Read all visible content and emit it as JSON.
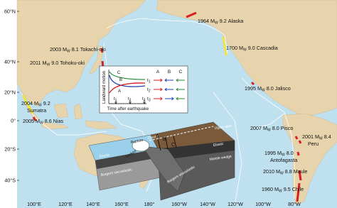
{
  "axes": {
    "latitude_labels": [
      "60°N",
      "40°N",
      "20°N",
      "0°",
      "20°S",
      "40°S"
    ],
    "longitude_labels": [
      "100°E",
      "120°E",
      "140°E",
      "160°E",
      "180°",
      "160°W",
      "140°W",
      "120°W",
      "100°W",
      "80°W"
    ]
  },
  "magnitude_symbol": "M",
  "magnitude_subscript": "W",
  "earthquakes": [
    {
      "year": "1964",
      "magnitude": "9.2",
      "name": "Alaska"
    },
    {
      "year": "2003",
      "magnitude": "8.1",
      "name": "Tokachi-oki"
    },
    {
      "year": "2011",
      "magnitude": "9.0",
      "name": "Tohoku-oki"
    },
    {
      "year": "1700",
      "magnitude": "9.0",
      "name": "Cascadia"
    },
    {
      "year": "1995",
      "magnitude": "8.0",
      "name": "Jalisco"
    },
    {
      "year": "2004",
      "magnitude": "9.2",
      "name": "Sumatra"
    },
    {
      "year": "2005",
      "magnitude": "8.6",
      "name": "Nias"
    },
    {
      "year": "2007",
      "magnitude": "8.0",
      "name": "Pisco"
    },
    {
      "year": "2001",
      "magnitude": "8.4",
      "name": "Peru"
    },
    {
      "year": "1995",
      "magnitude": "8.0",
      "name": "Antofagasta"
    },
    {
      "year": "2010",
      "magnitude": "8.8",
      "name": "Maule"
    },
    {
      "year": "1960",
      "magnitude": "9.5",
      "name": "Chile"
    }
  ],
  "inset": {
    "y_axis_label": "Landward motion",
    "x_axis_label": "Time after earthquake",
    "curves": [
      "C",
      "B",
      "A"
    ],
    "time_symbol": "t",
    "time_subscripts": [
      "1",
      "2",
      "3"
    ],
    "columns": [
      "A",
      "B",
      "C"
    ]
  },
  "block_diagram": {
    "labels": [
      "Elastic",
      "Burgers viscoelastic",
      "Locked",
      "Rupture",
      "Ocean",
      "Elastic",
      "Upper slab",
      "Burgers viscoelastic",
      "Mantle wedge",
      "A",
      "B",
      "C"
    ]
  }
}
